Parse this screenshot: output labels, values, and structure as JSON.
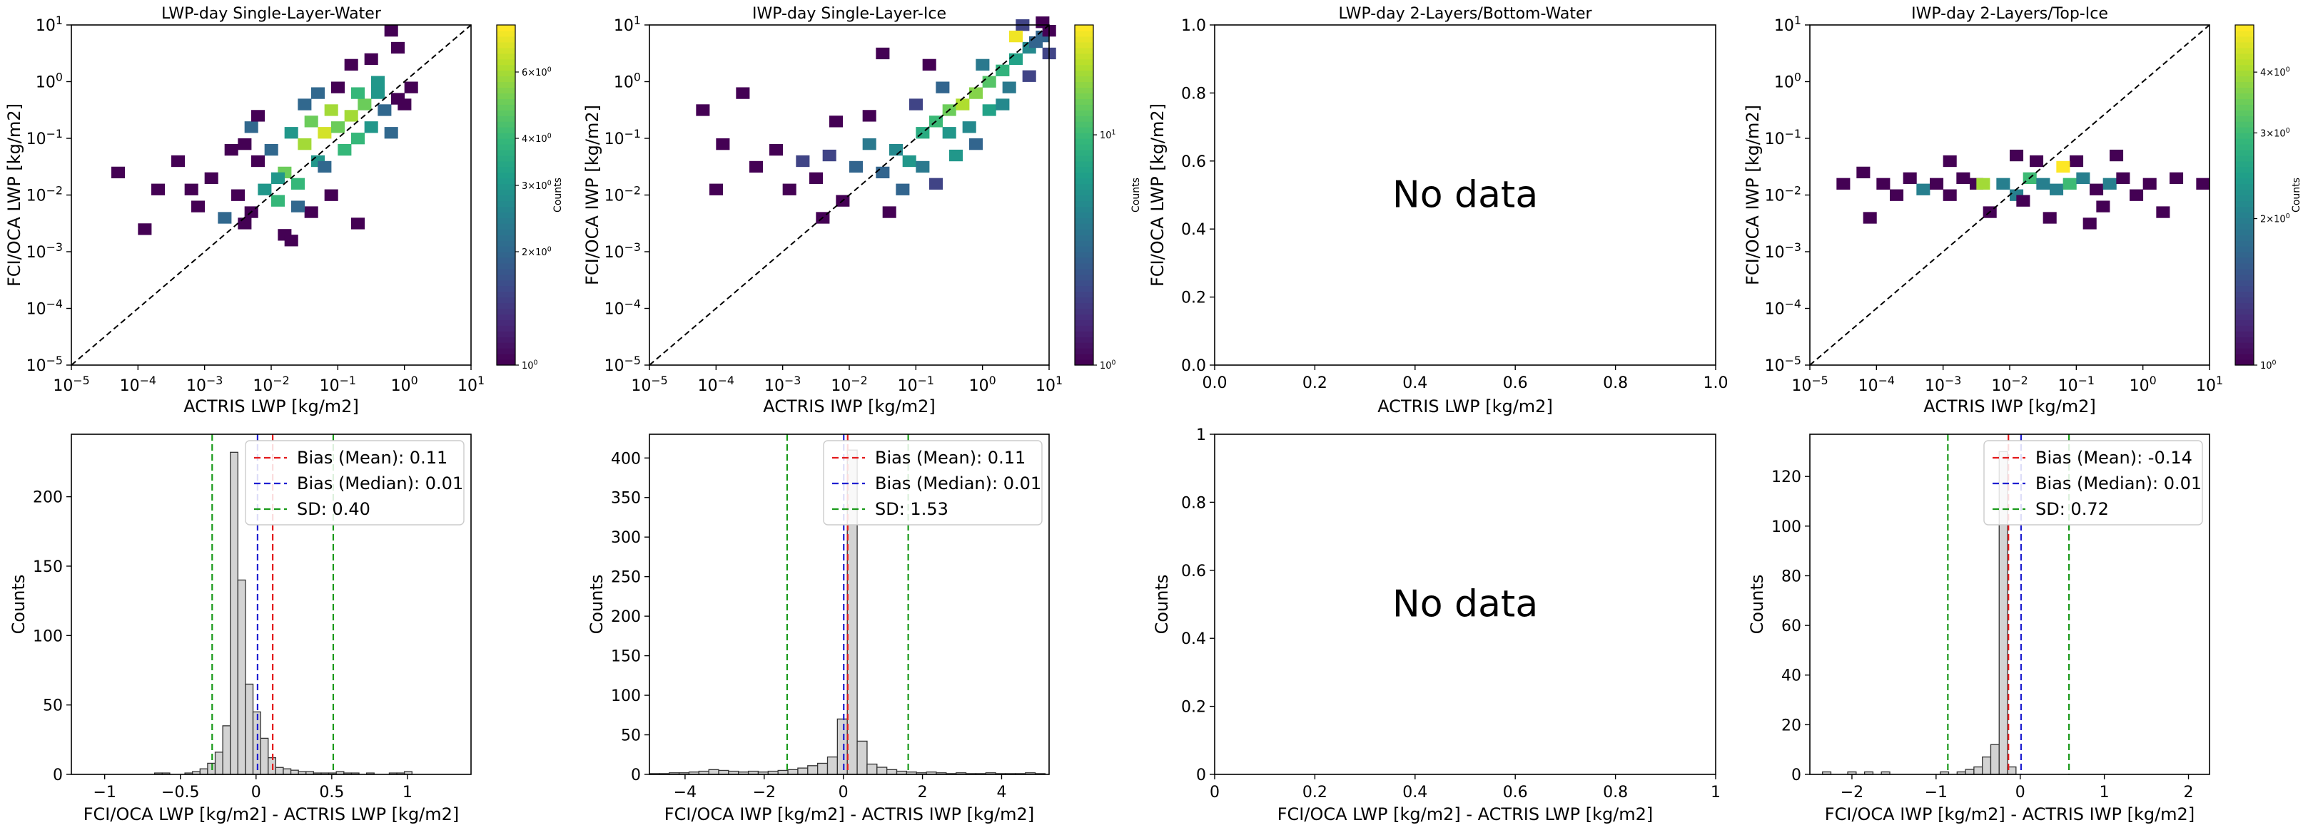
{
  "figure": {
    "background": "#ffffff"
  },
  "colors": {
    "bias_mean": "#e31a1c",
    "bias_median": "#1f1fd1",
    "sd": "#1a9a1a",
    "hist_fill": "#d3d3d3",
    "hist_edge": "#333333",
    "one_to_one": "#000000"
  },
  "chart_data": [
    {
      "type": "heatmap",
      "panel": "top-1",
      "title": "LWP-day Single-Layer-Water",
      "xlabel": "ACTRIS LWP [kg/m2]",
      "ylabel": "FCI/OCA LWP [kg/m2]",
      "xscale": "log",
      "yscale": "log",
      "xlim": [
        1e-05,
        10
      ],
      "ylim": [
        1e-05,
        10
      ],
      "xticks": [
        "10^-5",
        "10^-4",
        "10^-3",
        "10^-2",
        "10^-1",
        "10^0",
        "10^1"
      ],
      "yticks": [
        "10^-5",
        "10^-4",
        "10^-3",
        "10^-2",
        "10^-1",
        "10^0",
        "10^1"
      ],
      "one_to_one_line": true,
      "colorbar": {
        "label": "Counts",
        "scale": "log",
        "vmin": 1,
        "vmax": 8,
        "colormap": "viridis",
        "ticks": [
          {
            "v": 1,
            "t": "10^0"
          },
          {
            "v": 2,
            "t": "2×10^0"
          },
          {
            "v": 3,
            "t": "3×10^0"
          },
          {
            "v": 4,
            "t": "4×10^0"
          },
          {
            "v": 6,
            "t": "6×10^0"
          }
        ]
      },
      "cells": [
        [
          -2.5,
          -1.2,
          1
        ],
        [
          -2.4,
          -0.9,
          2
        ],
        [
          -2.3,
          -1.5,
          1
        ],
        [
          -2.2,
          -2.0,
          3
        ],
        [
          -2.1,
          -1.3,
          2
        ],
        [
          -2.0,
          -2.2,
          4
        ],
        [
          -1.9,
          -1.7,
          5
        ],
        [
          -1.8,
          -1.0,
          3
        ],
        [
          -1.7,
          -1.9,
          4
        ],
        [
          -1.6,
          -1.2,
          6
        ],
        [
          -1.5,
          -0.8,
          5
        ],
        [
          -1.4,
          -1.5,
          3
        ],
        [
          -1.3,
          -1.0,
          7
        ],
        [
          -1.2,
          -0.6,
          6
        ],
        [
          -1.1,
          -0.9,
          5
        ],
        [
          -1.0,
          -1.3,
          4
        ],
        [
          -0.9,
          -0.7,
          6
        ],
        [
          -0.8,
          -1.1,
          4
        ],
        [
          -0.7,
          -0.5,
          5
        ],
        [
          -0.6,
          -0.9,
          3
        ],
        [
          -0.5,
          -0.3,
          3
        ],
        [
          -0.4,
          -0.6,
          2
        ],
        [
          -0.3,
          -1.0,
          2
        ],
        [
          -0.2,
          -0.4,
          1
        ],
        [
          -3.0,
          -1.8,
          1
        ],
        [
          -2.8,
          -2.5,
          2
        ],
        [
          -2.6,
          -2.1,
          1
        ],
        [
          -2.4,
          -2.4,
          1
        ],
        [
          -3.2,
          -2.3,
          1
        ],
        [
          -3.5,
          -1.5,
          1
        ],
        [
          -3.8,
          -2.0,
          1
        ],
        [
          -4.0,
          -2.7,
          1
        ],
        [
          -4.4,
          -1.7,
          1
        ],
        [
          -1.5,
          -2.4,
          1
        ],
        [
          -1.2,
          -2.1,
          1
        ],
        [
          -0.8,
          -2.6,
          1
        ],
        [
          -2.0,
          -1.8,
          3
        ],
        [
          -1.7,
          -2.3,
          2
        ],
        [
          -1.9,
          -2.8,
          1
        ],
        [
          -1.4,
          -0.3,
          2
        ],
        [
          -1.1,
          -0.2,
          1
        ],
        [
          -0.9,
          0.2,
          1
        ],
        [
          -0.6,
          0.3,
          1
        ],
        [
          -0.3,
          0.8,
          1
        ],
        [
          -0.2,
          0.5,
          1
        ],
        [
          -0.5,
          -0.1,
          3
        ],
        [
          -1.6,
          -0.5,
          2
        ],
        [
          -2.3,
          -0.7,
          1
        ],
        [
          -2.7,
          -1.3,
          1
        ],
        [
          -3.3,
          -2.0,
          1
        ],
        [
          -2.5,
          -2.6,
          1
        ],
        [
          -0.1,
          -0.5,
          1
        ],
        [
          0.0,
          -0.2,
          1
        ],
        [
          -0.8,
          -0.3,
          4
        ],
        [
          -1.3,
          -1.6,
          2
        ],
        [
          -1.8,
          -2.9,
          1
        ]
      ]
    },
    {
      "type": "heatmap",
      "panel": "top-2",
      "title": "IWP-day Single-Layer-Ice",
      "xlabel": "ACTRIS IWP [kg/m2]",
      "ylabel": "FCI/OCA IWP [kg/m2]",
      "xscale": "log",
      "yscale": "log",
      "xlim": [
        1e-05,
        10
      ],
      "ylim": [
        1e-05,
        10
      ],
      "xticks": [
        "10^-5",
        "10^-4",
        "10^-3",
        "10^-2",
        "10^-1",
        "10^0",
        "10^1"
      ],
      "yticks": [
        "10^-5",
        "10^-4",
        "10^-3",
        "10^-2",
        "10^-1",
        "10^0",
        "10^1"
      ],
      "one_to_one_line": true,
      "colorbar": {
        "label": "Counts",
        "scale": "log",
        "vmin": 1,
        "vmax": 30,
        "colormap": "viridis",
        "ticks": [
          {
            "v": 1,
            "t": "10^0"
          },
          {
            "v": 10,
            "t": "10^1"
          }
        ]
      },
      "cells": [
        [
          -4.0,
          -1.2,
          1
        ],
        [
          -3.5,
          -1.6,
          1
        ],
        [
          -3.2,
          -1.3,
          1
        ],
        [
          -3.0,
          -2.0,
          1
        ],
        [
          -2.8,
          -1.5,
          2
        ],
        [
          -2.6,
          -1.8,
          1
        ],
        [
          -2.4,
          -1.4,
          2
        ],
        [
          -2.2,
          -2.2,
          1
        ],
        [
          -2.0,
          -1.6,
          3
        ],
        [
          -1.8,
          -1.2,
          4
        ],
        [
          -1.6,
          -1.7,
          3
        ],
        [
          -1.4,
          -1.3,
          5
        ],
        [
          -1.2,
          -1.5,
          6
        ],
        [
          -1.0,
          -1.0,
          8
        ],
        [
          -0.8,
          -0.8,
          10
        ],
        [
          -0.6,
          -0.6,
          14
        ],
        [
          -0.4,
          -0.5,
          20
        ],
        [
          -0.2,
          -0.3,
          16
        ],
        [
          0.0,
          -0.1,
          12
        ],
        [
          0.2,
          0.1,
          9
        ],
        [
          0.4,
          0.3,
          7
        ],
        [
          0.6,
          0.5,
          5
        ],
        [
          0.8,
          0.7,
          3
        ],
        [
          -0.6,
          -1.0,
          6
        ],
        [
          -0.3,
          -0.9,
          5
        ],
        [
          0.0,
          -0.6,
          7
        ],
        [
          0.3,
          -0.2,
          4
        ],
        [
          -1.0,
          -1.6,
          4
        ],
        [
          -1.3,
          -2.0,
          3
        ],
        [
          -0.8,
          -1.9,
          2
        ],
        [
          -0.5,
          -1.4,
          6
        ],
        [
          -0.2,
          -1.2,
          3
        ],
        [
          0.5,
          0.9,
          2
        ],
        [
          0.7,
          0.6,
          3
        ],
        [
          0.9,
          0.4,
          2
        ],
        [
          0.4,
          0.7,
          28
        ],
        [
          -4.3,
          -0.6,
          1
        ],
        [
          -4.1,
          -2.0,
          1
        ],
        [
          -3.7,
          -0.3,
          1
        ],
        [
          -2.5,
          -2.5,
          1
        ],
        [
          -1.5,
          -2.4,
          1
        ],
        [
          -1.8,
          -0.7,
          1
        ],
        [
          0.8,
          0.95,
          1
        ],
        [
          -0.1,
          0.2,
          4
        ],
        [
          0.2,
          -0.5,
          5
        ],
        [
          -0.7,
          -0.2,
          3
        ],
        [
          -1.1,
          -0.5,
          2
        ],
        [
          0.6,
          0.0,
          2
        ],
        [
          0.9,
          0.8,
          1
        ],
        [
          -2.3,
          -0.8,
          1
        ],
        [
          -1.6,
          0.4,
          1
        ],
        [
          -0.9,
          0.2,
          1
        ]
      ]
    },
    {
      "type": "heatmap",
      "panel": "top-3",
      "title": "LWP-day 2-Layers/Bottom-Water",
      "xlabel": "ACTRIS LWP [kg/m2]",
      "ylabel": "FCI/OCA LWP [kg/m2]",
      "xlim": [
        0,
        1
      ],
      "ylim": [
        0,
        1
      ],
      "xticks": [
        "0.0",
        "0.2",
        "0.4",
        "0.6",
        "0.8",
        "1.0"
      ],
      "yticks": [
        "0.0",
        "0.2",
        "0.4",
        "0.6",
        "0.8",
        "1.0"
      ],
      "annotation": "No data",
      "cells": []
    },
    {
      "type": "heatmap",
      "panel": "top-4",
      "title": "IWP-day 2-Layers/Top-Ice",
      "xlabel": "ACTRIS IWP [kg/m2]",
      "ylabel": "FCI/OCA IWP [kg/m2]",
      "xscale": "log",
      "yscale": "log",
      "xlim": [
        1e-05,
        10
      ],
      "ylim": [
        1e-05,
        10
      ],
      "xticks": [
        "10^-5",
        "10^-4",
        "10^-3",
        "10^-2",
        "10^-1",
        "10^0",
        "10^1"
      ],
      "yticks": [
        "10^-5",
        "10^-4",
        "10^-3",
        "10^-2",
        "10^-1",
        "10^0",
        "10^1"
      ],
      "one_to_one_line": true,
      "colorbar": {
        "label": "Counts",
        "scale": "log",
        "vmin": 1,
        "vmax": 5,
        "colormap": "viridis",
        "ticks": [
          {
            "v": 1,
            "t": "10^0"
          },
          {
            "v": 2,
            "t": "2×10^0"
          },
          {
            "v": 3,
            "t": "3×10^0"
          },
          {
            "v": 4,
            "t": "4×10^0"
          }
        ]
      },
      "cells": [
        [
          -4.3,
          -1.7,
          1
        ],
        [
          -4.0,
          -1.9,
          1
        ],
        [
          -3.8,
          -2.1,
          1
        ],
        [
          -3.6,
          -1.8,
          1
        ],
        [
          -3.4,
          -2.0,
          2
        ],
        [
          -3.2,
          -1.9,
          1
        ],
        [
          -3.0,
          -2.1,
          1
        ],
        [
          -2.8,
          -1.8,
          1
        ],
        [
          -2.6,
          -1.9,
          1
        ],
        [
          -2.5,
          -1.9,
          4
        ],
        [
          -2.2,
          -1.9,
          2
        ],
        [
          -2.0,
          -2.1,
          2
        ],
        [
          -1.8,
          -1.8,
          3
        ],
        [
          -1.6,
          -1.9,
          2
        ],
        [
          -1.4,
          -2.0,
          2
        ],
        [
          -1.2,
          -1.9,
          3
        ],
        [
          -1.0,
          -1.8,
          2
        ],
        [
          -0.8,
          -2.0,
          1
        ],
        [
          -0.6,
          -1.9,
          2
        ],
        [
          -0.4,
          -1.8,
          1
        ],
        [
          -0.2,
          -2.1,
          1
        ],
        [
          0.0,
          -1.9,
          1
        ],
        [
          0.4,
          -1.8,
          1
        ],
        [
          0.8,
          -1.9,
          1
        ],
        [
          -2.4,
          -2.4,
          1
        ],
        [
          -1.7,
          -1.5,
          1
        ],
        [
          -1.5,
          -2.5,
          1
        ],
        [
          -1.1,
          -1.5,
          1
        ],
        [
          -0.9,
          -2.6,
          1
        ],
        [
          -0.5,
          -1.4,
          1
        ],
        [
          -4.6,
          -1.9,
          1
        ],
        [
          -4.2,
          -2.5,
          1
        ],
        [
          -1.3,
          -1.6,
          5
        ],
        [
          -1.9,
          -2.2,
          1
        ],
        [
          -0.7,
          -2.3,
          1
        ],
        [
          0.2,
          -2.4,
          1
        ],
        [
          -3.0,
          -1.5,
          1
        ],
        [
          -2.0,
          -1.4,
          1
        ]
      ]
    },
    {
      "type": "bar",
      "panel": "bottom-1",
      "subtype": "histogram",
      "xlabel": "FCI/OCA LWP [kg/m2] - ACTRIS LWP [kg/m2]",
      "ylabel": "Counts",
      "xlim": [
        -1.22,
        1.42
      ],
      "ylim": [
        0,
        245
      ],
      "xticks": [
        -1.0,
        -0.5,
        0.0,
        0.5,
        1.0
      ],
      "yticks": [
        0,
        50,
        100,
        150,
        200
      ],
      "bin_start": -0.82,
      "bin_width": 0.05,
      "values": [
        0,
        0,
        0,
        1,
        1,
        0,
        0,
        1,
        2,
        4,
        8,
        16,
        35,
        232,
        140,
        65,
        45,
        26,
        12,
        5,
        4,
        3,
        2,
        2,
        1,
        1,
        1,
        2,
        1,
        1,
        0,
        1,
        0,
        0,
        1,
        1,
        2
      ],
      "vlines": [
        {
          "name": "Bias (Mean): 0.11",
          "x": 0.11,
          "color_key": "bias_mean"
        },
        {
          "name": "Bias (Median): 0.01",
          "x": 0.01,
          "color_key": "bias_median"
        },
        {
          "name": "SD: 0.40",
          "x": -0.29,
          "color_key": "sd"
        },
        {
          "name": "",
          "x": 0.51,
          "color_key": "sd"
        }
      ],
      "legend": {
        "placement": "top-right",
        "entries": [
          "Bias (Mean): 0.11",
          "Bias (Median): 0.01",
          "SD: 0.40"
        ]
      }
    },
    {
      "type": "bar",
      "panel": "bottom-2",
      "subtype": "histogram",
      "xlabel": "FCI/OCA IWP [kg/m2] - ACTRIS IWP [kg/m2]",
      "ylabel": "Counts",
      "xlim": [
        -4.9,
        5.2
      ],
      "ylim": [
        0,
        430
      ],
      "xticks": [
        -4,
        -2,
        0,
        2,
        4
      ],
      "yticks": [
        0,
        50,
        100,
        150,
        200,
        250,
        300,
        350,
        400
      ],
      "bin_start": -4.9,
      "bin_width": 0.25,
      "values": [
        1,
        1,
        2,
        2,
        3,
        4,
        6,
        5,
        4,
        3,
        4,
        3,
        4,
        5,
        6,
        8,
        11,
        14,
        22,
        70,
        410,
        42,
        13,
        9,
        6,
        4,
        3,
        2,
        3,
        2,
        1,
        2,
        1,
        1,
        2,
        1,
        1,
        1,
        2,
        1
      ],
      "vlines": [
        {
          "name": "Bias (Mean): 0.11",
          "x": 0.11,
          "color_key": "bias_mean"
        },
        {
          "name": "Bias (Median): 0.01",
          "x": 0.01,
          "color_key": "bias_median"
        },
        {
          "name": "SD: 1.53",
          "x": -1.42,
          "color_key": "sd"
        },
        {
          "name": "",
          "x": 1.64,
          "color_key": "sd"
        }
      ],
      "legend": {
        "placement": "top-right",
        "entries": [
          "Bias (Mean): 0.11",
          "Bias (Median): 0.01",
          "SD: 1.53"
        ]
      }
    },
    {
      "type": "bar",
      "panel": "bottom-3",
      "subtype": "histogram",
      "xlabel": "FCI/OCA LWP [kg/m2] - ACTRIS LWP [kg/m2]",
      "ylabel": "Counts",
      "xlim": [
        0,
        1
      ],
      "ylim": [
        0,
        1
      ],
      "xticks": [
        0.0,
        0.2,
        0.4,
        0.6,
        0.8,
        1.0
      ],
      "yticks": [
        0.0,
        0.2,
        0.4,
        0.6,
        0.8,
        1.0
      ],
      "annotation": "No data",
      "values": [],
      "vlines": []
    },
    {
      "type": "bar",
      "panel": "bottom-4",
      "subtype": "histogram",
      "xlabel": "FCI/OCA IWP [kg/m2] - ACTRIS IWP [kg/m2]",
      "ylabel": "Counts",
      "xlim": [
        -2.5,
        2.25
      ],
      "ylim": [
        0,
        137
      ],
      "xticks": [
        -2,
        -1,
        0,
        1,
        2
      ],
      "yticks": [
        0,
        20,
        40,
        60,
        80,
        100,
        120
      ],
      "bin_start": -2.35,
      "bin_width": 0.1,
      "values": [
        1,
        0,
        0,
        1,
        0,
        1,
        0,
        1,
        0,
        0,
        0,
        0,
        0,
        0,
        1,
        0,
        1,
        2,
        3,
        7,
        12,
        130,
        3
      ],
      "vlines": [
        {
          "name": "Bias (Mean): -0.14",
          "x": -0.14,
          "color_key": "bias_mean"
        },
        {
          "name": "Bias (Median): 0.01",
          "x": 0.01,
          "color_key": "bias_median"
        },
        {
          "name": "SD: 0.72",
          "x": -0.86,
          "color_key": "sd"
        },
        {
          "name": "",
          "x": 0.58,
          "color_key": "sd"
        }
      ],
      "legend": {
        "placement": "top-right",
        "entries": [
          "Bias (Mean): -0.14",
          "Bias (Median): 0.01",
          "SD: 0.72"
        ]
      }
    }
  ]
}
